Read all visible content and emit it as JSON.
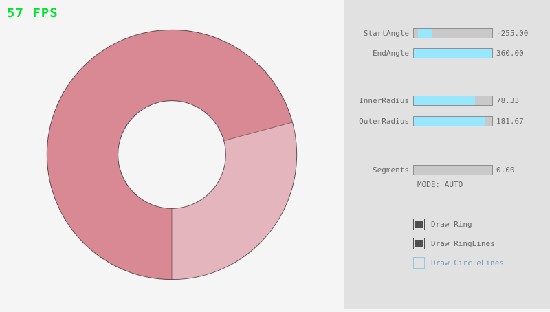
{
  "fps": {
    "label": "57 FPS",
    "color": "#00e430"
  },
  "ring": {
    "color_major": "#d98994",
    "color_minor": "#e4b5bc",
    "outline_color": "rgba(0,0,0,0.6)",
    "boundary_color": "rgba(0,0,0,0.4)",
    "slider_fill": "#97e8ff"
  },
  "panel": {
    "sliders": [
      {
        "label": "StartAngle",
        "value": "-255.00",
        "fill_left": 0.05,
        "fill_width": 0.18
      },
      {
        "label": "EndAngle",
        "value": "360.00",
        "fill_left": 0,
        "fill_width": 1
      },
      {
        "label": "InnerRadius",
        "value": "78.33",
        "fill_left": 0,
        "fill_width": 0.78
      },
      {
        "label": "OuterRadius",
        "value": "181.67",
        "fill_left": 0,
        "fill_width": 0.91
      },
      {
        "label": "Segments",
        "value": "0.00",
        "fill_left": 0,
        "fill_width": 0
      }
    ],
    "mode_text": "MODE: AUTO",
    "checkboxes": [
      {
        "label": "Draw Ring",
        "checked": true
      },
      {
        "label": "Draw RingLines",
        "checked": true
      },
      {
        "label": "Draw CircleLines",
        "checked": false
      }
    ]
  }
}
